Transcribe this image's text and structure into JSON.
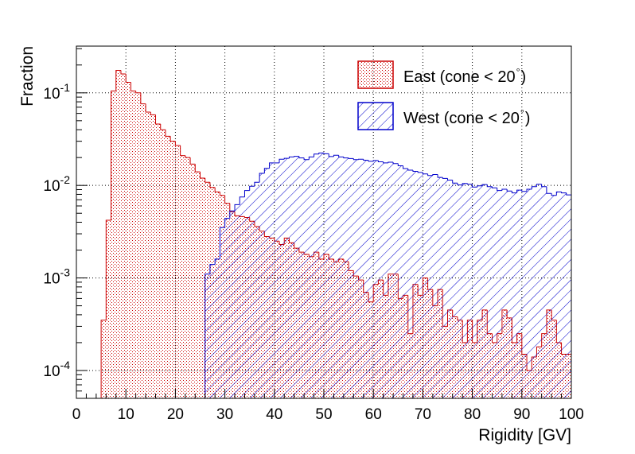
{
  "chart_data": {
    "type": "histogram",
    "xlabel": "Rigidity [GV]",
    "ylabel": "Fraction",
    "xlim": [
      0,
      100
    ],
    "ylim": [
      5e-05,
      0.32
    ],
    "y_scale": "log",
    "grid": true,
    "bin_width": 1,
    "x_ticks": [
      0,
      10,
      20,
      30,
      40,
      50,
      60,
      70,
      80,
      90,
      100
    ],
    "y_ticks": [
      {
        "value": 0.0001,
        "base": "10",
        "exp": "-4"
      },
      {
        "value": 0.001,
        "base": "10",
        "exp": "-3"
      },
      {
        "value": 0.01,
        "base": "10",
        "exp": "-2"
      },
      {
        "value": 0.1,
        "base": "10",
        "exp": "-1"
      }
    ],
    "legend_position": "top-right",
    "series": [
      {
        "name": "East (cone < 20°)",
        "label_text": "East (cone < 20",
        "label_suffix": ")",
        "color": "#cc0000",
        "fill": "dotted",
        "x_start": 5,
        "values": [
          0.00035,
          0.0042,
          0.105,
          0.175,
          0.16,
          0.13,
          0.105,
          0.1,
          0.076,
          0.062,
          0.058,
          0.046,
          0.04,
          0.034,
          0.03,
          0.027,
          0.021,
          0.02,
          0.017,
          0.014,
          0.012,
          0.0108,
          0.0095,
          0.0085,
          0.0078,
          0.0064,
          0.0052,
          0.0047,
          0.0046,
          0.0045,
          0.0041,
          0.0036,
          0.0032,
          0.0028,
          0.0027,
          0.0025,
          0.0023,
          0.0027,
          0.0024,
          0.0021,
          0.0019,
          0.0018,
          0.0017,
          0.0019,
          0.0016,
          0.0018,
          0.0016,
          0.0015,
          0.0016,
          0.0015,
          0.0012,
          0.00105,
          0.00095,
          0.0007,
          0.00055,
          0.00085,
          0.00095,
          0.00065,
          0.0011,
          0.0011,
          0.0006,
          0.00065,
          0.00025,
          0.00085,
          0.00065,
          0.001,
          0.00075,
          0.0005,
          0.00075,
          0.0003,
          0.00045,
          0.00038,
          0.00035,
          0.0002,
          0.00035,
          0.0002,
          0.00035,
          0.00045,
          0.00025,
          0.0002,
          0.00025,
          0.00045,
          0.00037,
          0.0002,
          0.00025,
          0.00015,
          0.0001,
          0.00014,
          0.00018,
          0.00025,
          0.00045,
          0.00035,
          0.0002,
          0.00015,
          0.00015,
          0.00045
        ]
      },
      {
        "name": "West (cone < 20°)",
        "label_text": "West (cone < 20",
        "label_suffix": ")",
        "color": "#0000cc",
        "fill": "hatched",
        "x_start": 26,
        "values": [
          0.0011,
          0.0014,
          0.0016,
          0.0035,
          0.0044,
          0.0053,
          0.0062,
          0.0075,
          0.0088,
          0.0098,
          0.0108,
          0.0135,
          0.0153,
          0.0175,
          0.0175,
          0.0192,
          0.0196,
          0.0203,
          0.0206,
          0.0198,
          0.019,
          0.0203,
          0.0218,
          0.0224,
          0.022,
          0.0205,
          0.0212,
          0.0203,
          0.0198,
          0.0195,
          0.019,
          0.0192,
          0.0187,
          0.0182,
          0.0186,
          0.018,
          0.0175,
          0.0178,
          0.0172,
          0.0163,
          0.0152,
          0.0146,
          0.0142,
          0.0138,
          0.0133,
          0.0128,
          0.0131,
          0.0122,
          0.0119,
          0.0114,
          0.0106,
          0.0101,
          0.0105,
          0.0103,
          0.0096,
          0.0099,
          0.0102,
          0.0097,
          0.0094,
          0.0088,
          0.0091,
          0.0087,
          0.0083,
          0.0089,
          0.0086,
          0.0091,
          0.0097,
          0.0103,
          0.0097,
          0.0082,
          0.0078,
          0.0085,
          0.0083,
          0.0079
        ]
      }
    ]
  }
}
